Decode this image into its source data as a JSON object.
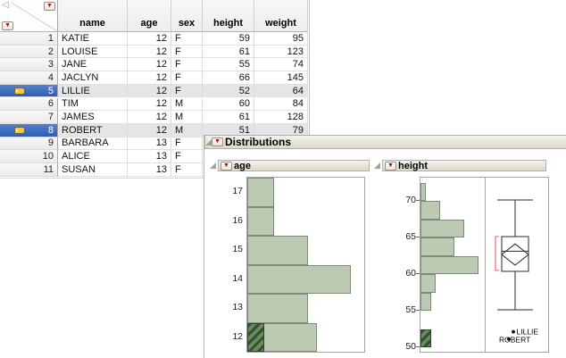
{
  "icons": {
    "red_triangle": "▼",
    "table_collapse": "◁"
  },
  "colors": {
    "histogram_bar_fill": "#bccab4",
    "histogram_bar_border": "#7d8c77",
    "selection_hatch_dark": "#33502f",
    "selection_hatch_light": "#6b8a60",
    "selected_row_blue": "#3d6cc3",
    "red_triangle_menu": "#c40000",
    "shortest_half_bracket": "#ef8a8a",
    "panel_titlebar": "#e9e5da"
  },
  "table": {
    "columns": [
      "name",
      "age",
      "sex",
      "height",
      "weight"
    ],
    "rows": [
      {
        "n": "1",
        "name": "KATIE",
        "age": "12",
        "sex": "F",
        "height": "59",
        "weight": "95",
        "selected": false,
        "labeled": false
      },
      {
        "n": "2",
        "name": "LOUISE",
        "age": "12",
        "sex": "F",
        "height": "61",
        "weight": "123",
        "selected": false,
        "labeled": false
      },
      {
        "n": "3",
        "name": "JANE",
        "age": "12",
        "sex": "F",
        "height": "55",
        "weight": "74",
        "selected": false,
        "labeled": false
      },
      {
        "n": "4",
        "name": "JACLYN",
        "age": "12",
        "sex": "F",
        "height": "66",
        "weight": "145",
        "selected": false,
        "labeled": false
      },
      {
        "n": "5",
        "name": "LILLIE",
        "age": "12",
        "sex": "F",
        "height": "52",
        "weight": "64",
        "selected": true,
        "labeled": true
      },
      {
        "n": "6",
        "name": "TIM",
        "age": "12",
        "sex": "M",
        "height": "60",
        "weight": "84",
        "selected": false,
        "labeled": false
      },
      {
        "n": "7",
        "name": "JAMES",
        "age": "12",
        "sex": "M",
        "height": "61",
        "weight": "128",
        "selected": false,
        "labeled": false
      },
      {
        "n": "8",
        "name": "ROBERT",
        "age": "12",
        "sex": "M",
        "height": "51",
        "weight": "79",
        "selected": true,
        "labeled": true
      },
      {
        "n": "9",
        "name": "BARBARA",
        "age": "13",
        "sex": "F",
        "height": "",
        "weight": "",
        "selected": false,
        "labeled": false
      },
      {
        "n": "10",
        "name": "ALICE",
        "age": "13",
        "sex": "F",
        "height": "",
        "weight": "",
        "selected": false,
        "labeled": false
      },
      {
        "n": "11",
        "name": "SUSAN",
        "age": "13",
        "sex": "F",
        "height": "",
        "weight": "",
        "selected": false,
        "labeled": false
      }
    ]
  },
  "distributions": {
    "title": "Distributions",
    "panels": [
      {
        "title": "age"
      },
      {
        "title": "height"
      }
    ]
  },
  "chart_data": [
    {
      "type": "bar",
      "title": "age",
      "orientation": "horizontal",
      "categories": [
        "17",
        "16",
        "15",
        "14",
        "13",
        "12"
      ],
      "values": [
        3,
        3,
        7,
        12,
        7,
        8
      ],
      "selected_counts": [
        0,
        0,
        0,
        0,
        0,
        2
      ],
      "category_axis": "age",
      "value_axis": "count (unlabeled)"
    },
    {
      "type": "bar",
      "title": "height",
      "orientation": "horizontal",
      "bin_min": 50,
      "bin_width": 2.5,
      "counts_bottom_to_top": [
        2,
        0,
        2,
        3,
        12,
        7,
        9,
        4,
        1
      ],
      "selected_bottom_to_top": [
        2,
        0,
        0,
        0,
        0,
        0,
        0,
        0,
        0
      ],
      "yticks": [
        50,
        55,
        60,
        65,
        70
      ],
      "ylim": [
        49.4,
        73.3
      ],
      "boxplot": {
        "whisker_low": 55,
        "q1": 60.25,
        "median": 63,
        "q3": 65,
        "whisker_high": 70,
        "mean": 62.55,
        "mean_diamond_half_height": 1.45,
        "shortest_half_bracket": [
          60.4,
          65
        ],
        "labeled_points": [
          {
            "label": "LILLIE",
            "value": 52
          },
          {
            "label": "ROBERT",
            "value": 51
          }
        ]
      }
    }
  ]
}
